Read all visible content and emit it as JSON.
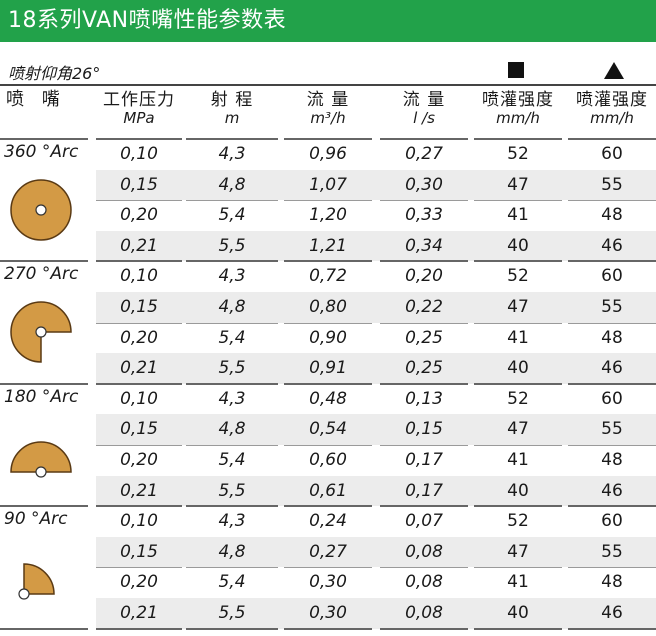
{
  "title": "18系列VAN喷嘴性能参数表",
  "subtitle": "喷射仰角26°",
  "colors": {
    "title_bar": "#22a24a",
    "pie_fill": "#d39a45",
    "pie_stroke": "#5a3a14"
  },
  "legend": {
    "square_icon": "square-icon",
    "triangle_icon": "triangle-icon"
  },
  "headers": [
    {
      "l1": "喷 嘴",
      "l2": ""
    },
    {
      "l1": "工作压力",
      "l2": "MPa"
    },
    {
      "l1": "射 程",
      "l2": "m"
    },
    {
      "l1": "流 量",
      "l2": "m³/h"
    },
    {
      "l1": "流 量",
      "l2": "l /s"
    },
    {
      "l1": "喷灌强度",
      "l2": "mm/h"
    },
    {
      "l1": "喷灌强度",
      "l2": "mm/h"
    }
  ],
  "groups": [
    {
      "label": "360 °Arc",
      "arc": 360,
      "rows": [
        [
          "0,10",
          "4,3",
          "0,96",
          "0,27",
          "52",
          "60"
        ],
        [
          "0,15",
          "4,8",
          "1,07",
          "0,30",
          "47",
          "55"
        ],
        [
          "0,20",
          "5,4",
          "1,20",
          "0,33",
          "41",
          "48"
        ],
        [
          "0,21",
          "5,5",
          "1,21",
          "0,34",
          "40",
          "46"
        ]
      ]
    },
    {
      "label": "270 °Arc",
      "arc": 270,
      "rows": [
        [
          "0,10",
          "4,3",
          "0,72",
          "0,20",
          "52",
          "60"
        ],
        [
          "0,15",
          "4,8",
          "0,80",
          "0,22",
          "47",
          "55"
        ],
        [
          "0,20",
          "5,4",
          "0,90",
          "0,25",
          "41",
          "48"
        ],
        [
          "0,21",
          "5,5",
          "0,91",
          "0,25",
          "40",
          "46"
        ]
      ]
    },
    {
      "label": "180 °Arc",
      "arc": 180,
      "rows": [
        [
          "0,10",
          "4,3",
          "0,48",
          "0,13",
          "52",
          "60"
        ],
        [
          "0,15",
          "4,8",
          "0,54",
          "0,15",
          "47",
          "55"
        ],
        [
          "0,20",
          "5,4",
          "0,60",
          "0,17",
          "41",
          "48"
        ],
        [
          "0,21",
          "5,5",
          "0,61",
          "0,17",
          "40",
          "46"
        ]
      ]
    },
    {
      "label": "90 °Arc",
      "arc": 90,
      "rows": [
        [
          "0,10",
          "4,3",
          "0,24",
          "0,07",
          "52",
          "60"
        ],
        [
          "0,15",
          "4,8",
          "0,27",
          "0,08",
          "47",
          "55"
        ],
        [
          "0,20",
          "5,4",
          "0,30",
          "0,08",
          "41",
          "48"
        ],
        [
          "0,21",
          "5,5",
          "0,30",
          "0,08",
          "40",
          "46"
        ]
      ]
    }
  ]
}
